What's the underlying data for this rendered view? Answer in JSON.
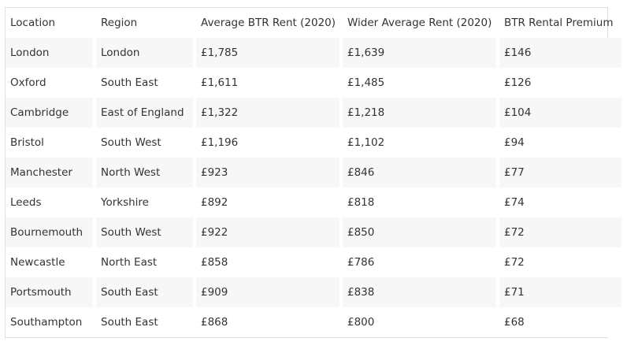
{
  "table": {
    "headers": [
      "Location",
      "Region",
      "Average BTR Rent (2020)",
      "Wider Average Rent (2020)",
      "BTR Rental Premium"
    ],
    "rows": [
      [
        "London",
        "London",
        "£1,785",
        "£1,639",
        "£146"
      ],
      [
        "Oxford",
        "South East",
        "£1,611",
        "£1,485",
        "£126"
      ],
      [
        "Cambridge",
        "East of England",
        "£1,322",
        "£1,218",
        "£104"
      ],
      [
        "Bristol",
        "South West",
        "£1,196",
        "£1,102",
        "£94"
      ],
      [
        "Manchester",
        "North West",
        "£923",
        "£846",
        "£77"
      ],
      [
        "Leeds",
        "Yorkshire",
        "£892",
        "£818",
        "£74"
      ],
      [
        "Bournemouth",
        "South West",
        "£922",
        "£850",
        "£72"
      ],
      [
        "Newcastle",
        "North East",
        "£858",
        "£786",
        "£72"
      ],
      [
        "Portsmouth",
        "South East",
        "£909",
        "£838",
        "£71"
      ],
      [
        "Southampton",
        "South East",
        "£868",
        "£800",
        "£68"
      ]
    ]
  }
}
